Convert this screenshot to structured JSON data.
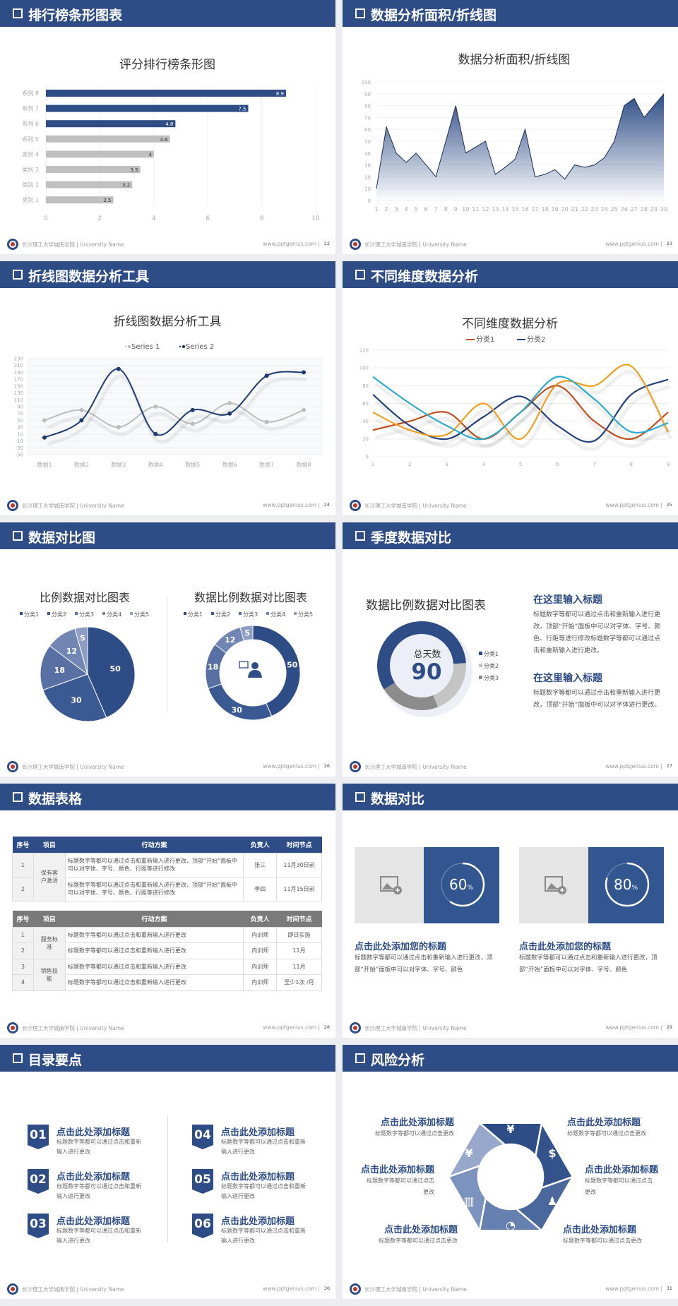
{
  "footer": {
    "school": "长沙理工大学城南学院 | University Name",
    "url": "www.pptgenius.com  |"
  },
  "colors": {
    "header": "#2e4d87",
    "navy": "#2e4d87",
    "gray_bar": "#c0c0c0"
  },
  "slides": [
    {
      "title": "排行榜条形图表",
      "page": "22"
    },
    {
      "title": "数据分析面积/折线图",
      "page": "23"
    },
    {
      "title": "折线图数据分析工具",
      "page": "24"
    },
    {
      "title": "不同维度数据分析",
      "page": "25"
    },
    {
      "title": "数据对比图",
      "page": "26"
    },
    {
      "title": "季度数据对比",
      "page": "27"
    },
    {
      "title": "数据表格",
      "page": "28"
    },
    {
      "title": "数据对比",
      "page": "29"
    },
    {
      "title": "目录要点",
      "page": "30"
    },
    {
      "title": "风险分析",
      "page": "31"
    }
  ],
  "chart_data": [
    {
      "type": "bar",
      "title": "评分排行榜条形图",
      "categories": [
        "系列 8",
        "系列 7",
        "系列 6",
        "系列 5",
        "类别 4",
        "类别 3",
        "类别 2",
        "类别 1"
      ],
      "values": [
        8.9,
        7.5,
        4.8,
        4.6,
        4,
        3.5,
        3.2,
        2.5
      ],
      "bar_colors": [
        "#2e4d87",
        "#2e4d87",
        "#2e4d87",
        "#c0c0c0",
        "#c0c0c0",
        "#c0c0c0",
        "#c0c0c0",
        "#c0c0c0"
      ],
      "xlim": [
        0,
        10
      ],
      "xticks": [
        "0",
        "2",
        "4",
        "6",
        "8",
        "10"
      ],
      "orientation": "horizontal"
    },
    {
      "type": "area",
      "title": "数据分析面积/折线图",
      "x": [
        1,
        2,
        3,
        4,
        5,
        6,
        7,
        8,
        9,
        10,
        11,
        12,
        13,
        14,
        15,
        16,
        17,
        18,
        19,
        20,
        21,
        22,
        23,
        24,
        25,
        26,
        27,
        28,
        29,
        30
      ],
      "values": [
        10,
        62,
        40,
        32,
        40,
        30,
        20,
        50,
        80,
        40,
        45,
        50,
        22,
        28,
        35,
        60,
        20,
        22,
        26,
        18,
        30,
        28,
        30,
        36,
        50,
        80,
        86,
        70,
        80,
        90
      ],
      "ylim": [
        0,
        100
      ],
      "yticks": [
        "0",
        "10",
        "20",
        "30",
        "40",
        "50",
        "60",
        "70",
        "80",
        "90",
        "100"
      ],
      "color": "#2e4d87"
    },
    {
      "type": "line",
      "title": "折线图数据分析工具",
      "categories": [
        "数据1",
        "数据2",
        "数据3",
        "数据4",
        "数据5",
        "数据6",
        "数据7",
        "数据8"
      ],
      "series": [
        {
          "name": "Series 1",
          "values": [
            50,
            80,
            30,
            90,
            40,
            100,
            45,
            80
          ],
          "color": "#bdbdbd"
        },
        {
          "name": "Series 2",
          "values": [
            0,
            50,
            200,
            10,
            80,
            70,
            180,
            190
          ],
          "color": "#1f3a73"
        }
      ],
      "ylim": [
        -50,
        230
      ],
      "yticks": [
        "230",
        "210",
        "190",
        "170",
        "150",
        "130",
        "110",
        "90",
        "70",
        "50",
        "30",
        "10",
        "-10",
        "-30",
        "-50"
      ],
      "legend": "top",
      "smooth": true
    },
    {
      "type": "line",
      "title": "不同维度数据分析",
      "categories": [
        "1",
        "2",
        "3",
        "4",
        "5",
        "6",
        "7",
        "8",
        "9"
      ],
      "series": [
        {
          "name": "分类1",
          "values": [
            30,
            40,
            50,
            20,
            50,
            80,
            40,
            20,
            50
          ],
          "color": "#c0501f"
        },
        {
          "name": "分类2",
          "values": [
            70,
            35,
            20,
            45,
            68,
            35,
            18,
            70,
            87
          ],
          "color": "#22407e"
        },
        {
          "values": [
            50,
            30,
            25,
            60,
            20,
            82,
            80,
            102,
            28
          ],
          "color": "#f0a020"
        },
        {
          "values": [
            90,
            60,
            35,
            20,
            50,
            90,
            65,
            28,
            38
          ],
          "color": "#2aaccc"
        }
      ],
      "ylim": [
        0,
        120
      ],
      "yticks": [
        "0",
        "20",
        "40",
        "60",
        "80",
        "100",
        "120"
      ],
      "legend": "top",
      "smooth": true
    },
    {
      "type": "pie",
      "title": "比例数据对比图表",
      "categories": [
        "分类1",
        "分类2",
        "分类3",
        "分类4",
        "分类5"
      ],
      "values": [
        50,
        30,
        18,
        12,
        5
      ],
      "colors": [
        "#2e4d87",
        "#3b5a94",
        "#5870a3",
        "#7186b3",
        "#8d9dc3"
      ],
      "legend": "top"
    },
    {
      "type": "pie",
      "variant": "donut",
      "title": "数据比例数据对比图表",
      "categories": [
        "分类1",
        "分类2",
        "分类3",
        "分类4",
        "分类5"
      ],
      "values": [
        50,
        30,
        18,
        12,
        5
      ],
      "colors": [
        "#2e4d87",
        "#3b5a94",
        "#5870a3",
        "#7186b3",
        "#8d9dc3"
      ],
      "center_icon": "presenter-icon",
      "legend": "top"
    },
    {
      "type": "pie",
      "variant": "donut",
      "title": "数据比例数据对比图表",
      "categories": [
        "分类1",
        "分类2",
        "分类3"
      ],
      "values": [
        58,
        20,
        22
      ],
      "colors": [
        "#2e4d87",
        "#c4c4c4",
        "#8c8c8c"
      ],
      "center_label": "总天数",
      "center_value": "90",
      "legend": "right"
    }
  ],
  "quarter": {
    "blocks": [
      {
        "heading": "在这里输入标题",
        "body": "标题数字等都可以通过点击和重新输入进行更改，顶部“开始”面板中可以对字体、字号、颜色、行距等进行修改标题数字等都可以通过点击和重新输入进行更改。"
      },
      {
        "heading": "在这里输入标题",
        "body": "标题数字等都可以通过点击和重新输入进行更改，顶部“开始”面板中可以对字体进行更改。"
      }
    ]
  },
  "tables": [
    {
      "header_color": "#2e4d87",
      "columns": [
        "序号",
        "项目",
        "行动方案",
        "负责人",
        "时间节点"
      ],
      "groups": [
        {
          "project": "保有客户激活",
          "rows": [
            {
              "no": "1",
              "action": "标题数字等都可以通过点击和重新输入进行更改，顶部“开始”面板中可以对字体、字号、颜色、行距等进行修改",
              "owner": "张三",
              "time": "11月30日前"
            },
            {
              "no": "2",
              "action": "标题数字等都可以通过点击和重新输入进行更改，顶部“开始”面板中可以对字体、字号、颜色、行距等进行修改",
              "owner": "李四",
              "time": "11月15日前"
            }
          ]
        }
      ]
    },
    {
      "header_color": "#7a7a7a",
      "columns": [
        "序号",
        "项目",
        "行动方案",
        "负责人",
        "时间节点"
      ],
      "groups": [
        {
          "project": "服务标准",
          "rows": [
            {
              "no": "1",
              "action": "标题数字等都可以通过点击和重新输入进行更改",
              "owner": "内训师",
              "time": "即日实施"
            },
            {
              "no": "2",
              "action": "标题数字等都可以通过点击和重新输入进行更改",
              "owner": "内训师",
              "time": "11月"
            }
          ]
        },
        {
          "project": "销售技能",
          "rows": [
            {
              "no": "3",
              "action": "标题数字等都可以通过点击和重新输入进行更改",
              "owner": "内训师",
              "time": "11月"
            },
            {
              "no": "4",
              "action": "标题数字等都可以通过点击和重新输入进行更改",
              "owner": "内训师",
              "time": "至少1次 /月"
            }
          ]
        }
      ]
    }
  ],
  "compare": [
    {
      "percent": 60,
      "value": "60",
      "unit": "%",
      "image_icon": "add-image-icon",
      "heading": "点击此处添加您的标题",
      "body": "标题数字等都可以通过点击和重新输入进行更改，顶部“开始”面板中可以对字体、字号、颜色"
    },
    {
      "percent": 80,
      "value": "80",
      "unit": "%",
      "image_icon": "add-image-icon",
      "heading": "点击此处添加您的标题",
      "body": "标题数字等都可以通过点击和重新输入进行更改，顶部“开始”面板中可以对字体、字号、颜色"
    }
  ],
  "toc": [
    {
      "num": "01",
      "heading": "点击此处添加标题",
      "body": "标题数字等都可以通过点击和重新输入进行更改"
    },
    {
      "num": "02",
      "heading": "点击此处添加标题",
      "body": "标题数字等都可以通过点击和重新输入进行更改"
    },
    {
      "num": "03",
      "heading": "点击此处添加标题",
      "body": "标题数字等都可以通过点击和重新输入进行更改"
    },
    {
      "num": "04",
      "heading": "点击此处添加标题",
      "body": "标题数字等都可以通过点击和重新输入进行更改"
    },
    {
      "num": "05",
      "heading": "点击此处添加标题",
      "body": "标题数字等都可以通过点击和重新输入进行更改"
    },
    {
      "num": "06",
      "heading": "点击此处添加标题",
      "body": "标题数字等都可以通过点击和重新输入进行更改"
    }
  ],
  "risk": {
    "items": [
      {
        "heading": "点击此处添加标题",
        "body": "标题数字等都可以通过点击更改"
      },
      {
        "heading": "点击此处添加标题",
        "body": "标题数字等都可以通过点击更改"
      },
      {
        "heading": "点击此处添加标题",
        "body": "标题数字等都可以通过点击更改"
      },
      {
        "heading": "点击此处添加标题",
        "body": "标题数字等都可以通过点击更改"
      },
      {
        "heading": "点击此处添加标题",
        "body": "标题数字等都可以通过点击更改"
      },
      {
        "heading": "点击此处添加标题",
        "body": "标题数字等都可以通过点击更改"
      }
    ],
    "segment_icons": [
      "money-bag-icon",
      "coins-icon",
      "users-icon",
      "pie-chart-icon",
      "building-icon",
      "yen-hand-icon"
    ],
    "segment_colors": [
      "#2e4d87",
      "#34528c",
      "#4a679e",
      "#6780b2",
      "#7d93bf",
      "#97a8cc"
    ]
  }
}
